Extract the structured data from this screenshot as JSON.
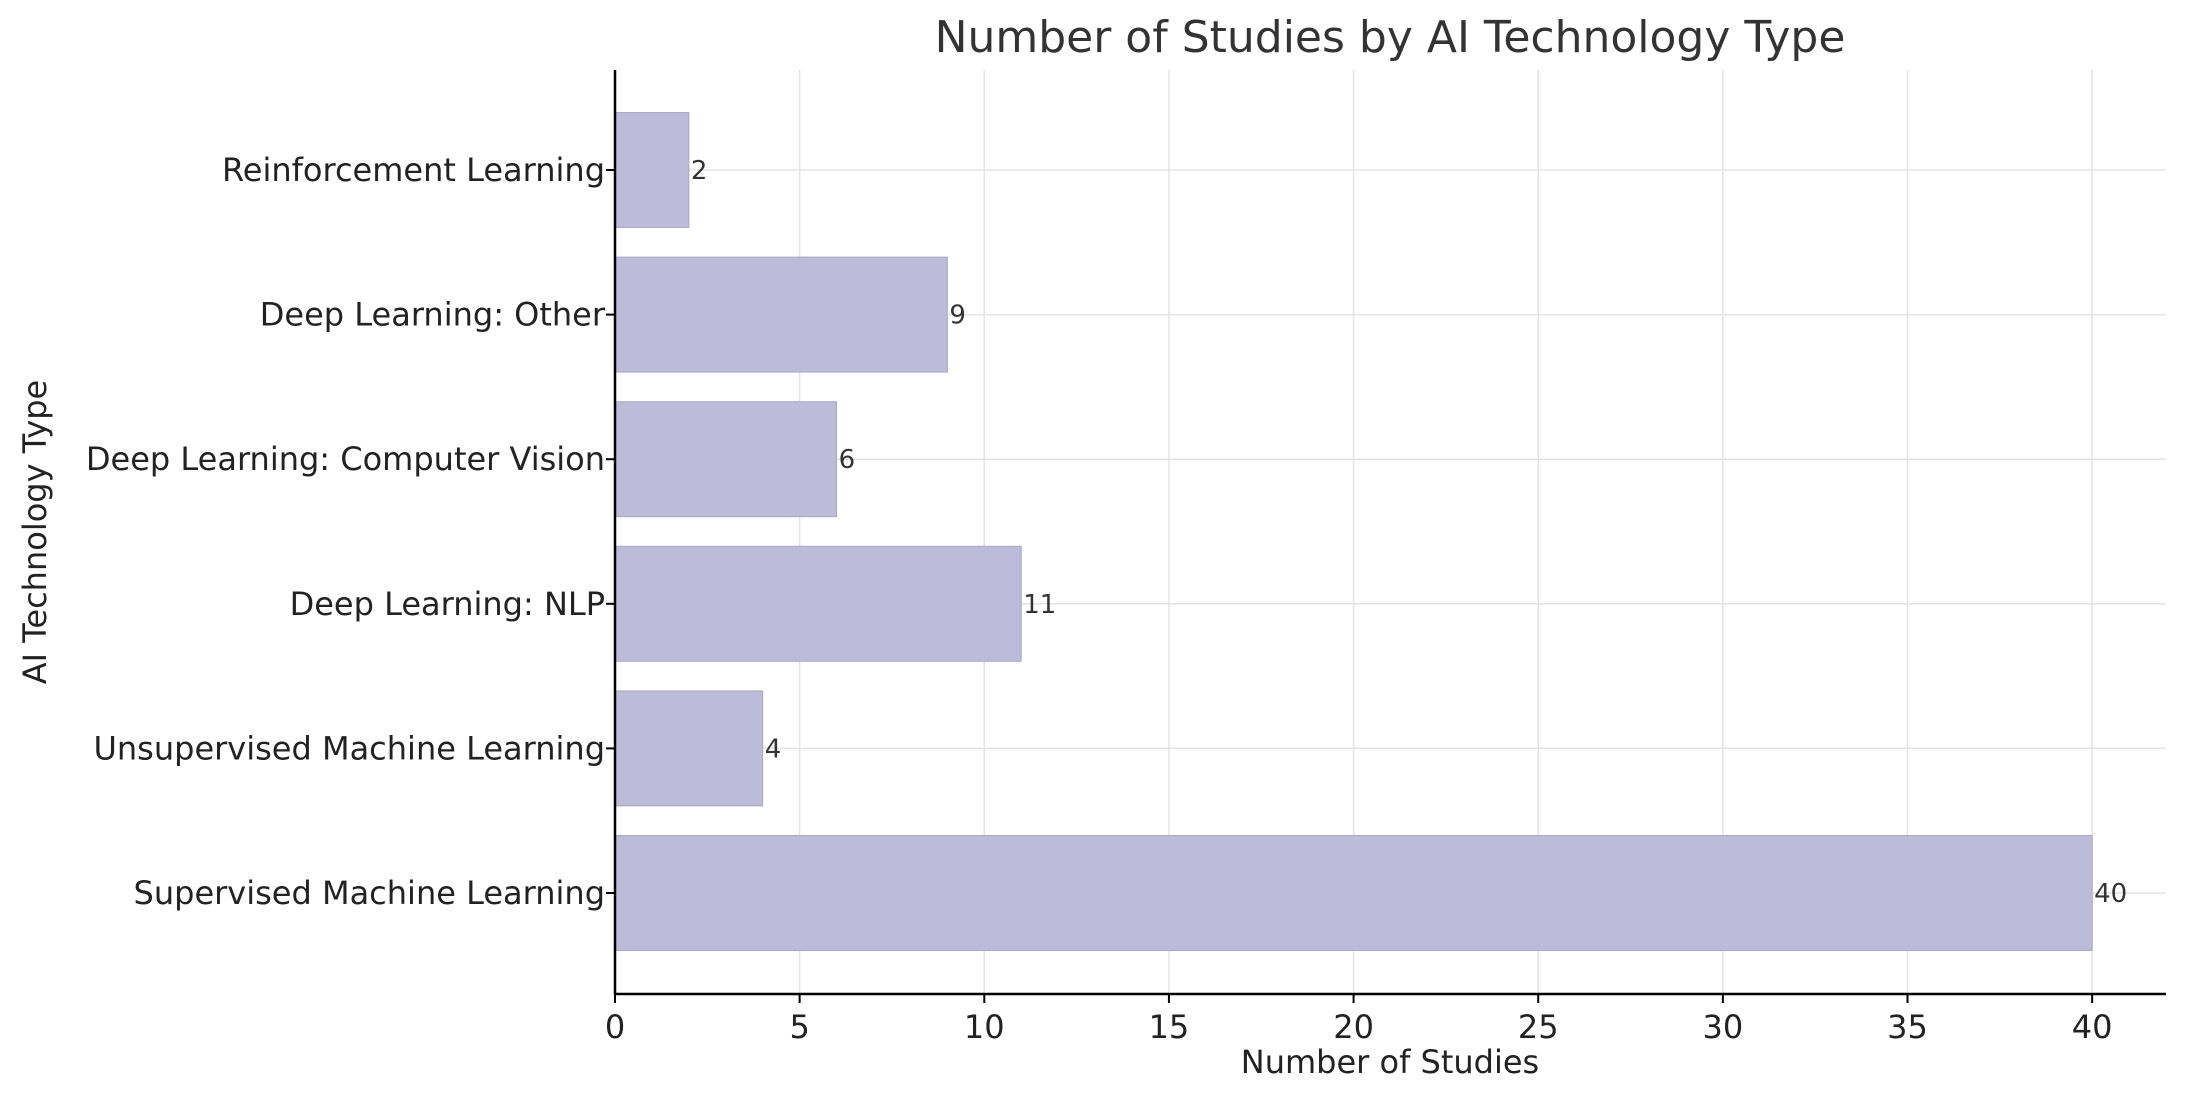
{
  "chart_data": {
    "type": "bar",
    "orientation": "horizontal",
    "title": "Number of Studies by AI Technology Type",
    "xlabel": "Number of Studies",
    "ylabel": "AI Technology Type",
    "categories": [
      "Supervised Machine Learning",
      "Unsupervised Machine Learning",
      "Deep Learning: NLP",
      "Deep Learning: Computer Vision",
      "Deep Learning: Other",
      "Reinforcement Learning"
    ],
    "values": [
      40,
      4,
      11,
      6,
      9,
      2
    ],
    "xlim": [
      0,
      42
    ],
    "xticks": [
      0,
      5,
      10,
      15,
      20,
      25,
      30,
      35,
      40
    ],
    "grid": true,
    "data_labels": true,
    "bar_color": "#bcbcd9"
  }
}
